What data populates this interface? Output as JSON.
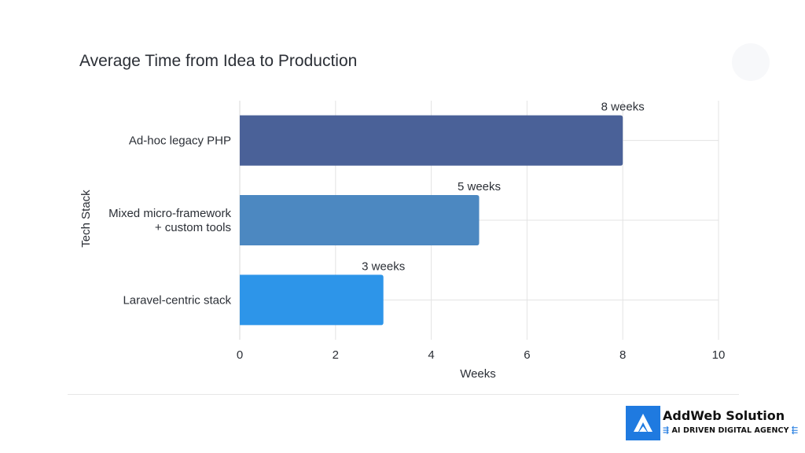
{
  "chart_data": {
    "type": "bar",
    "orientation": "horizontal",
    "title": "Average Time from Idea to Production",
    "xlabel": "Weeks",
    "ylabel": "Tech Stack",
    "xlim": [
      0,
      10
    ],
    "xticks": [
      "0",
      "2",
      "4",
      "6",
      "8",
      "10"
    ],
    "grid": true,
    "categories": [
      {
        "lines": [
          "Ad-hoc legacy PHP"
        ]
      },
      {
        "lines": [
          "Mixed micro-framework",
          "+ custom tools"
        ]
      },
      {
        "lines": [
          "Laravel-centric stack"
        ]
      }
    ],
    "values": [
      8,
      5,
      3
    ],
    "data_labels": [
      "8 weeks",
      "5 weeks",
      "3 weeks"
    ],
    "colors": [
      "#4a6198",
      "#4c88c1",
      "#2d95e9"
    ]
  },
  "branding": {
    "name": "AddWeb Solution",
    "tagline": "AI DRIVEN DIGITAL AGENCY",
    "tagline_arrows_left": "⇶",
    "tagline_arrows_right": "⬱",
    "logo_icon": "addweb-logo-icon",
    "logo_color": "#1f7ae0"
  }
}
